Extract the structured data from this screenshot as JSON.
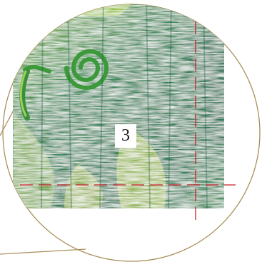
{
  "detail": {
    "number": "3"
  },
  "colors": {
    "circle_outline": "#a8915a",
    "crop_marks": "#c8202a",
    "background": "#ffffff",
    "texture_dark": "#2f7a55",
    "texture_light": "#c9dc5a"
  }
}
